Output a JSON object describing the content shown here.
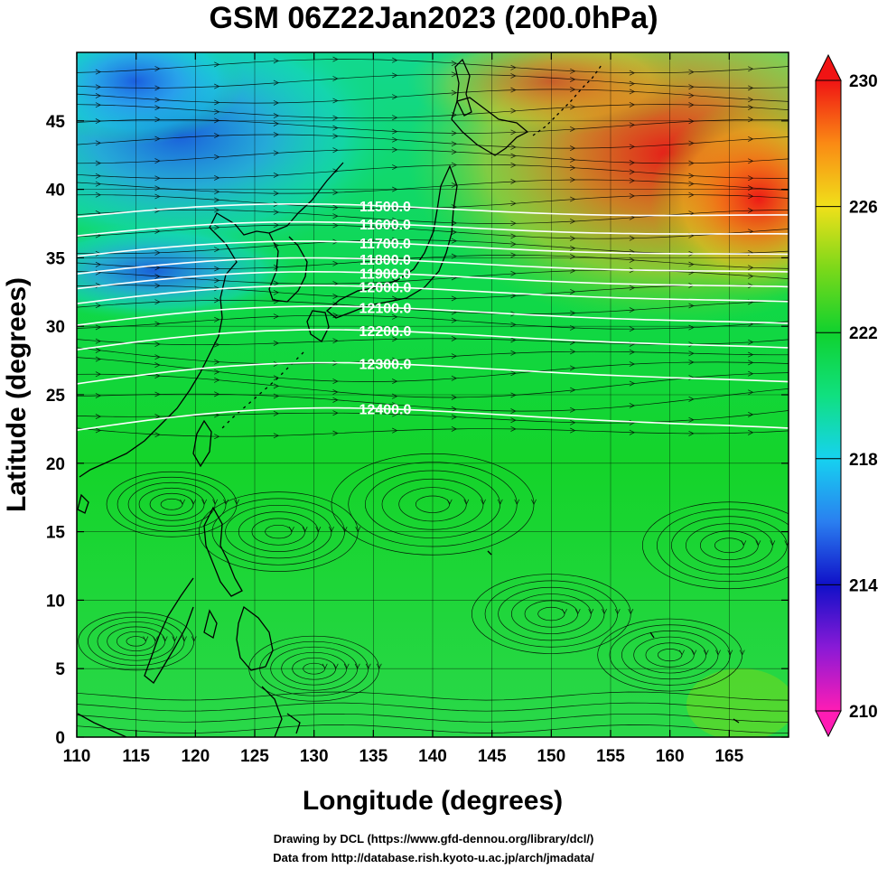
{
  "title": "GSM 06Z22Jan2023 (200.0hPa)",
  "xaxis": {
    "label": "Longitude (degrees)",
    "range": [
      110,
      170
    ],
    "ticks": [
      110,
      115,
      120,
      125,
      130,
      135,
      140,
      145,
      150,
      155,
      160,
      165
    ]
  },
  "yaxis": {
    "label": "Latitude  (degrees)",
    "range": [
      0,
      50
    ],
    "ticks": [
      0,
      5,
      10,
      15,
      20,
      25,
      30,
      35,
      40,
      45
    ]
  },
  "colorbar": {
    "range": [
      210,
      230
    ],
    "tick_labels": [
      "230",
      "226",
      "222",
      "218",
      "214",
      "210"
    ],
    "stops": [
      {
        "value": 210,
        "color": "#ff1cb4"
      },
      {
        "value": 212,
        "color": "#8a1ad6"
      },
      {
        "value": 214,
        "color": "#1010c8"
      },
      {
        "value": 216,
        "color": "#2a7ff0"
      },
      {
        "value": 218,
        "color": "#16d2f0"
      },
      {
        "value": 220,
        "color": "#10e080"
      },
      {
        "value": 222,
        "color": "#10d22e"
      },
      {
        "value": 224,
        "color": "#7ad81a"
      },
      {
        "value": 226,
        "color": "#f0e01a"
      },
      {
        "value": 228,
        "color": "#fa8a14"
      },
      {
        "value": 230,
        "color": "#f01414"
      }
    ]
  },
  "contours": [
    {
      "label": "11500.0",
      "lat": 38.7
    },
    {
      "label": "11600.0",
      "lat": 37.4
    },
    {
      "label": "11700.0",
      "lat": 36.0
    },
    {
      "label": "11800.0",
      "lat": 34.8
    },
    {
      "label": "11900.0",
      "lat": 33.8
    },
    {
      "label": "12000.0",
      "lat": 32.8
    },
    {
      "label": "12100.0",
      "lat": 31.3
    },
    {
      "label": "12200.0",
      "lat": 29.6
    },
    {
      "label": "12300.0",
      "lat": 27.2
    },
    {
      "label": "12400.0",
      "lat": 23.9
    }
  ],
  "credits": {
    "line1": "Drawing by DCL (https://www.gfd-dennou.org/library/dcl/)",
    "line2": "Data from http://database.rish.kyoto-u.ac.jp/arch/jmadata/"
  },
  "colors": {
    "contour": "#ffffff",
    "coastline": "#000000",
    "streamline": "#000000",
    "grid": "#000000"
  }
}
